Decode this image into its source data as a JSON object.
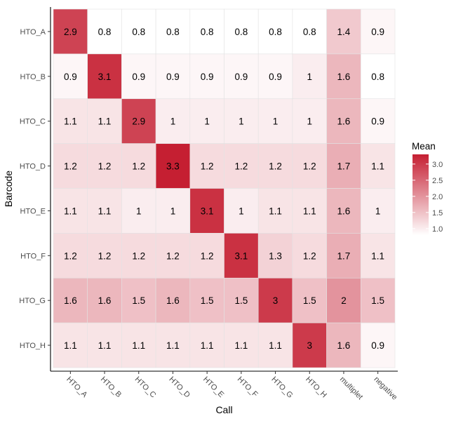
{
  "chart_data": {
    "type": "heatmap",
    "title": "",
    "xlabel": "Call",
    "ylabel": "Barcode",
    "x_categories": [
      "HTO_A",
      "HTO_B",
      "HTO_C",
      "HTO_D",
      "HTO_E",
      "HTO_F",
      "HTO_G",
      "HTO_H",
      "multiplet",
      "negative"
    ],
    "y_categories": [
      "HTO_A",
      "HTO_B",
      "HTO_C",
      "HTO_D",
      "HTO_E",
      "HTO_F",
      "HTO_G",
      "HTO_H"
    ],
    "values": [
      [
        2.9,
        0.8,
        0.8,
        0.8,
        0.8,
        0.8,
        0.8,
        0.8,
        1.4,
        0.9
      ],
      [
        0.9,
        3.1,
        0.9,
        0.9,
        0.9,
        0.9,
        0.9,
        1,
        1.6,
        0.8
      ],
      [
        1.1,
        1.1,
        2.9,
        1,
        1,
        1,
        1,
        1,
        1.6,
        0.9
      ],
      [
        1.2,
        1.2,
        1.2,
        3.3,
        1.2,
        1.2,
        1.2,
        1.2,
        1.7,
        1.1
      ],
      [
        1.1,
        1.1,
        1,
        1,
        3.1,
        1,
        1.1,
        1.1,
        1.6,
        1
      ],
      [
        1.2,
        1.2,
        1.2,
        1.2,
        1.2,
        3.1,
        1.3,
        1.2,
        1.7,
        1.1
      ],
      [
        1.6,
        1.6,
        1.5,
        1.6,
        1.5,
        1.5,
        3,
        1.5,
        2,
        1.5
      ],
      [
        1.1,
        1.1,
        1.1,
        1.1,
        1.1,
        1.1,
        1.1,
        3,
        1.6,
        0.9
      ]
    ],
    "legend": {
      "title": "Mean",
      "position": "right",
      "ticks": [
        "3.0",
        "2.5",
        "2.0",
        "1.5",
        "1.0"
      ],
      "tick_values": [
        3.0,
        2.5,
        2.0,
        1.5,
        1.0
      ],
      "range": [
        0.8,
        3.3
      ],
      "low_color": "#ffffff",
      "high_color": "#c51f32"
    }
  }
}
